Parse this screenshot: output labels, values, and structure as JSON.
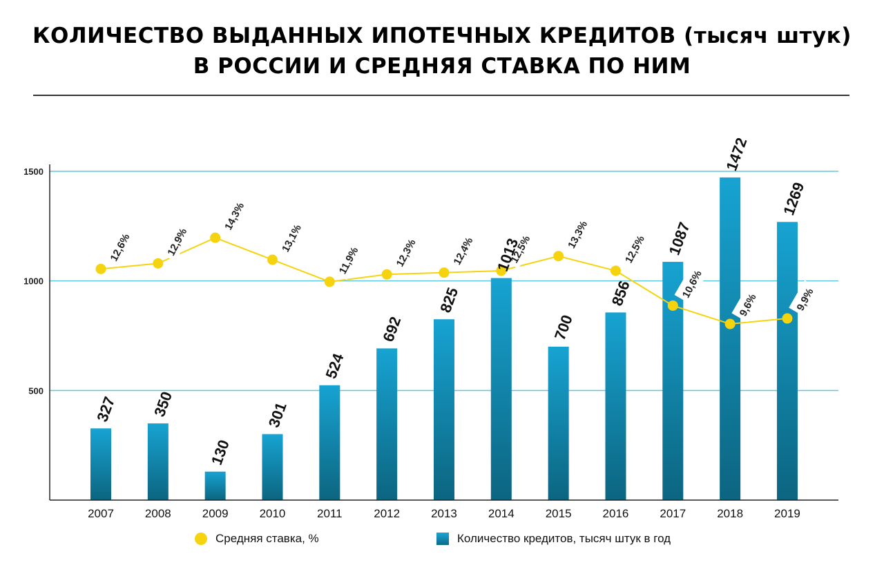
{
  "title": {
    "line1": "КОЛИЧЕСТВО ВЫДАННЫХ ИПОТЕЧНЫХ КРЕДИТОВ (тысяч штук)",
    "line2": "В РОССИИ И СРЕДНЯЯ СТАВКА ПО НИМ"
  },
  "legend": {
    "rate_label": "Средняя ставка, %",
    "count_label": "Количество кредитов, тысяч штук в год"
  },
  "colors": {
    "bar_top": "#17a3d2",
    "bar_bottom": "#0c6580",
    "line": "#f5d40f",
    "grid": "#5fc7df",
    "axis": "#222222"
  },
  "chart_data": {
    "type": "bar",
    "categories": [
      "2007",
      "2008",
      "2009",
      "2010",
      "2011",
      "2012",
      "2013",
      "2014",
      "2015",
      "2016",
      "2017",
      "2018",
      "2019"
    ],
    "ylim": [
      0,
      1500
    ],
    "yticks": [
      "500",
      "1000",
      "1500"
    ],
    "grid": true,
    "legend_position": "bottom",
    "series": [
      {
        "name": "Количество кредитов, тысяч штук в год",
        "type": "bar",
        "values": [
          327,
          350,
          130,
          301,
          524,
          692,
          825,
          1013,
          700,
          856,
          1087,
          1472,
          1269
        ],
        "labels": [
          "327",
          "350",
          "130",
          "301",
          "524",
          "692",
          "825",
          "1013",
          "700",
          "856",
          "1087",
          "1472",
          "1269"
        ]
      },
      {
        "name": "Средняя ставка, %",
        "type": "line",
        "values": [
          12.6,
          12.9,
          14.3,
          13.1,
          11.9,
          12.3,
          12.4,
          12.5,
          13.3,
          12.5,
          10.6,
          9.6,
          9.9
        ],
        "labels": [
          "12,6%",
          "12,9%",
          "14,3%",
          "13,1%",
          "11,9%",
          "12,3%",
          "12,4%",
          "12,5%",
          "13,3%",
          "12,5%",
          "10,6%",
          "9,6%",
          "9,9%"
        ]
      }
    ]
  }
}
